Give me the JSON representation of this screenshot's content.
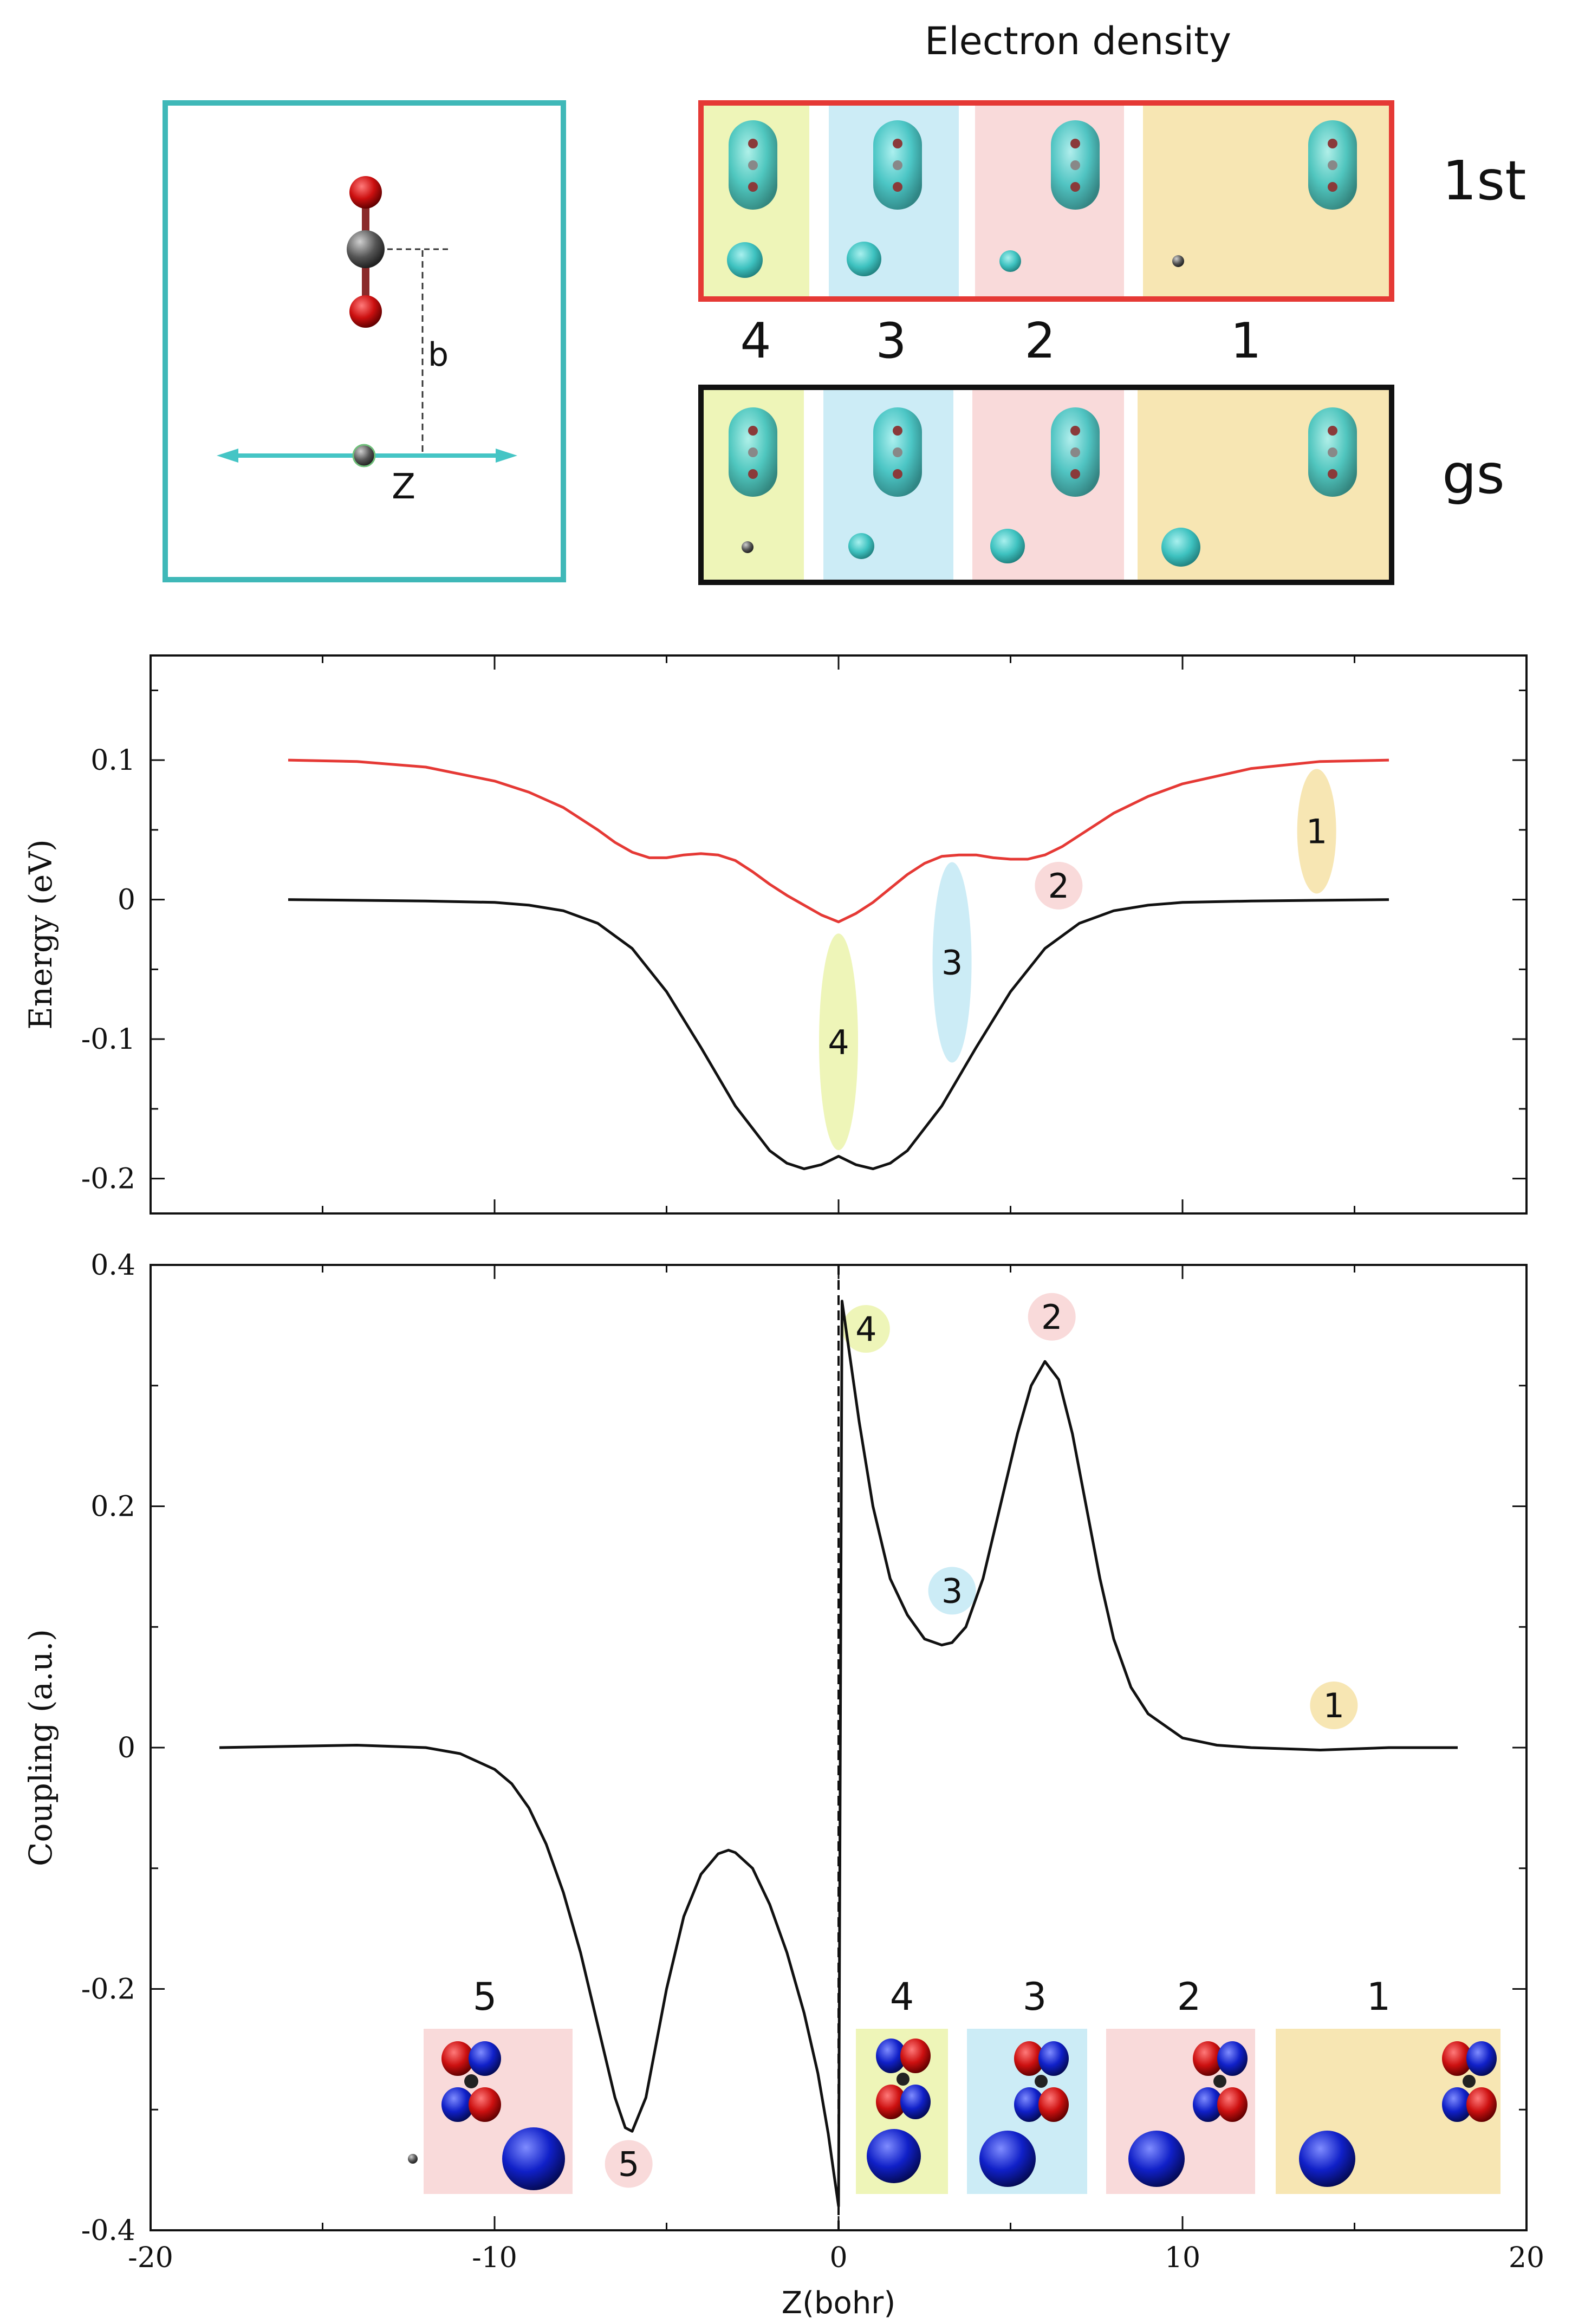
{
  "density_panel": {
    "title": "Electron density",
    "row_1st_label": "1st",
    "row_gs_label": "gs",
    "region_labels": [
      "4",
      "3",
      "2",
      "1"
    ],
    "frame_1st_color": "#e53935",
    "frame_gs_color": "#111111"
  },
  "geometry_panel": {
    "b_label": "b",
    "z_label": "Z",
    "frame_color": "#3fb8b8"
  },
  "region_colors": {
    "1": "#f7e6b3",
    "2": "#f9dada",
    "3": "#ccecf6",
    "4": "#eef5b8",
    "5": "#f9dada"
  },
  "chart_data": [
    {
      "type": "line",
      "title": "",
      "xlabel": "",
      "ylabel": "Energy (eV)",
      "xlim": [
        -20,
        20
      ],
      "ylim": [
        -0.225,
        0.175
      ],
      "yticks": [
        -0.2,
        -0.1,
        0,
        0.1
      ],
      "ytick_labels": [
        "-0.2",
        "-0.1",
        "0",
        "0.1"
      ],
      "series": [
        {
          "name": "1st",
          "color": "#e53935",
          "x": [
            -16,
            -14,
            -12,
            -10,
            -9,
            -8,
            -7,
            -6.5,
            -6,
            -5.5,
            -5,
            -4.5,
            -4,
            -3.5,
            -3,
            -2.5,
            -2,
            -1.5,
            -1,
            -0.5,
            0,
            0.5,
            1,
            1.5,
            2,
            2.5,
            3,
            3.5,
            4,
            4.5,
            5,
            5.5,
            6,
            6.5,
            7,
            8,
            9,
            10,
            12,
            14,
            16
          ],
          "y": [
            0.1,
            0.099,
            0.095,
            0.085,
            0.077,
            0.066,
            0.05,
            0.041,
            0.034,
            0.03,
            0.03,
            0.032,
            0.033,
            0.032,
            0.028,
            0.02,
            0.011,
            0.003,
            -0.004,
            -0.011,
            -0.016,
            -0.01,
            -0.002,
            0.008,
            0.018,
            0.026,
            0.031,
            0.032,
            0.032,
            0.03,
            0.029,
            0.029,
            0.032,
            0.038,
            0.046,
            0.062,
            0.074,
            0.083,
            0.094,
            0.099,
            0.1
          ]
        },
        {
          "name": "gs",
          "color": "#111111",
          "x": [
            -16,
            -12,
            -10,
            -9,
            -8,
            -7,
            -6,
            -5,
            -4,
            -3,
            -2,
            -1.5,
            -1,
            -0.5,
            0,
            0.5,
            1,
            1.5,
            2,
            3,
            4,
            5,
            6,
            7,
            8,
            9,
            10,
            12,
            16
          ],
          "y": [
            0,
            -0.001,
            -0.002,
            -0.004,
            -0.008,
            -0.017,
            -0.035,
            -0.066,
            -0.106,
            -0.148,
            -0.18,
            -0.189,
            -0.193,
            -0.19,
            -0.184,
            -0.19,
            -0.193,
            -0.189,
            -0.18,
            -0.148,
            -0.106,
            -0.066,
            -0.035,
            -0.017,
            -0.008,
            -0.004,
            -0.002,
            -0.001,
            0
          ]
        }
      ],
      "annotations": [
        {
          "label": "1",
          "x": 13.9,
          "y": 0.049,
          "region": "1"
        },
        {
          "label": "2",
          "x": 6.4,
          "y": 0.01,
          "region": "2"
        },
        {
          "label": "3",
          "x": 3.3,
          "y": -0.045,
          "region": "3"
        },
        {
          "label": "4",
          "x": 0,
          "y": -0.102,
          "region": "4"
        }
      ]
    },
    {
      "type": "line",
      "title": "",
      "xlabel": "Z(bohr)",
      "ylabel": "Coupling (a.u.)",
      "xlim": [
        -20,
        20
      ],
      "ylim": [
        -0.4,
        0.4
      ],
      "xticks": [
        -20,
        -10,
        0,
        10,
        20
      ],
      "xtick_labels": [
        "-20",
        "-10",
        "0",
        "10",
        "20"
      ],
      "yticks": [
        -0.4,
        -0.2,
        0,
        0.2,
        0.4
      ],
      "ytick_labels": [
        "-0.4",
        "-0.2",
        "0",
        "0.2",
        "0.4"
      ],
      "vline_x": 0,
      "series": [
        {
          "name": "coupling",
          "color": "#111111",
          "x": [
            -18,
            -14,
            -12,
            -11,
            -10,
            -9.5,
            -9,
            -8.5,
            -8,
            -7.5,
            -7,
            -6.5,
            -6.2,
            -6,
            -5.6,
            -5,
            -4.5,
            -4,
            -3.5,
            -3.2,
            -3,
            -2.5,
            -2,
            -1.5,
            -1,
            -0.6,
            -0.3,
            -0.1,
            0,
            0.1,
            0.3,
            0.6,
            1,
            1.5,
            2,
            2.5,
            3,
            3.3,
            3.7,
            4.2,
            4.7,
            5.2,
            5.6,
            6,
            6.4,
            6.8,
            7.2,
            7.6,
            8,
            8.5,
            9,
            10,
            11,
            12,
            14,
            16,
            18
          ],
          "y": [
            0,
            0.002,
            0,
            -0.005,
            -0.018,
            -0.03,
            -0.05,
            -0.08,
            -0.12,
            -0.17,
            -0.23,
            -0.29,
            -0.315,
            -0.318,
            -0.29,
            -0.2,
            -0.14,
            -0.105,
            -0.088,
            -0.085,
            -0.087,
            -0.1,
            -0.13,
            -0.17,
            -0.22,
            -0.27,
            -0.32,
            -0.36,
            -0.38,
            0.37,
            0.33,
            0.27,
            0.2,
            0.14,
            0.11,
            0.09,
            0.085,
            0.087,
            0.1,
            0.14,
            0.2,
            0.26,
            0.3,
            0.32,
            0.305,
            0.26,
            0.2,
            0.14,
            0.09,
            0.05,
            0.028,
            0.008,
            0.002,
            0,
            -0.002,
            0,
            0
          ]
        }
      ],
      "annotations": [
        {
          "label": "1",
          "x": 14.4,
          "y": 0.035,
          "region": "1"
        },
        {
          "label": "2",
          "x": 6.2,
          "y": 0.357,
          "region": "2"
        },
        {
          "label": "3",
          "x": 3.3,
          "y": 0.13,
          "region": "3"
        },
        {
          "label": "4",
          "x": 0.8,
          "y": 0.347,
          "region": "4"
        },
        {
          "label": "5",
          "x": -6.1,
          "y": -0.345,
          "region": "5"
        }
      ],
      "inset_labels": [
        "5",
        "4",
        "3",
        "2",
        "1"
      ]
    }
  ]
}
